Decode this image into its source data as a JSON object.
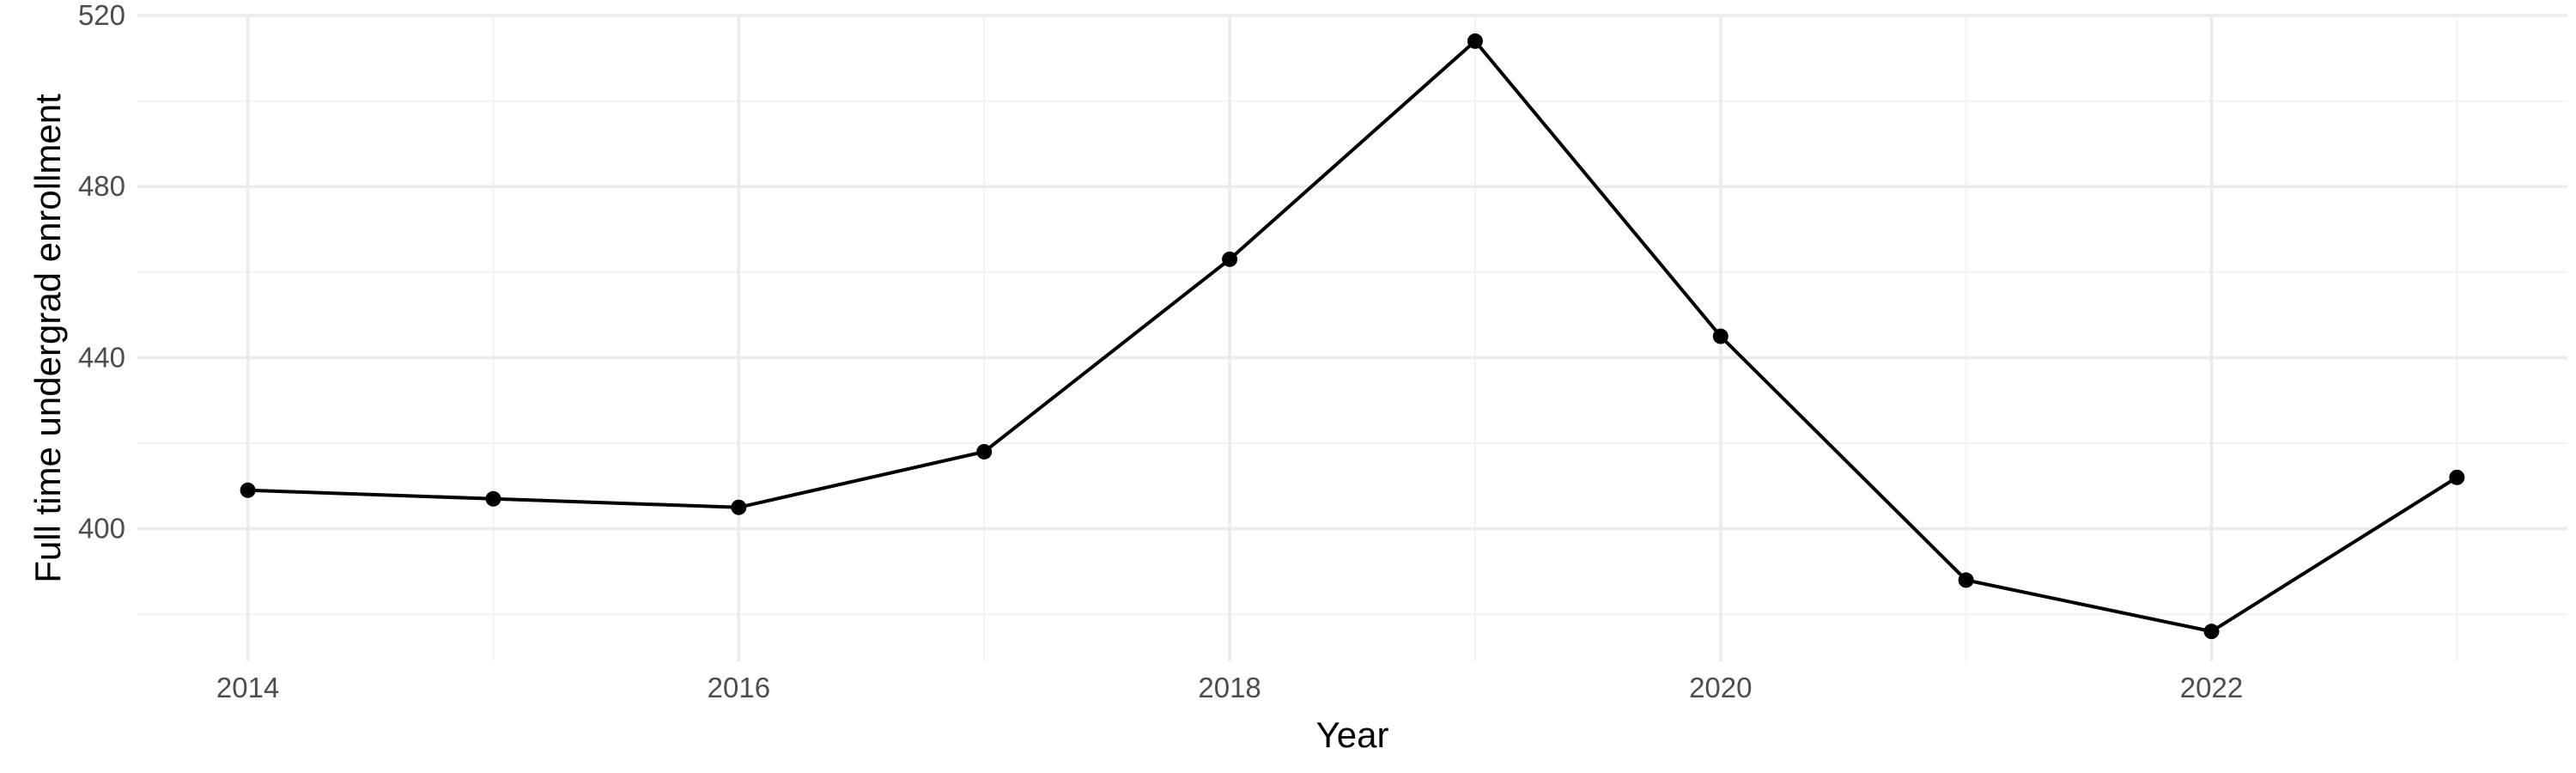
{
  "chart_data": {
    "type": "line",
    "title": "",
    "xlabel": "Year",
    "ylabel": "Full time undergrad enrollment",
    "x": [
      2014,
      2015,
      2016,
      2017,
      2018,
      2019,
      2020,
      2021,
      2022,
      2023
    ],
    "series": [
      {
        "values": [
          409,
          407,
          405,
          418,
          463,
          514,
          445,
          388,
          376,
          412
        ]
      }
    ],
    "xlim": [
      2013.55,
      2023.45
    ],
    "ylim": [
      369,
      520
    ],
    "x_ticks": [
      2014,
      2016,
      2018,
      2020,
      2022
    ],
    "x_tick_labels": [
      "2014",
      "2016",
      "2018",
      "2020",
      "2022"
    ],
    "y_ticks": [
      400,
      440,
      480,
      520
    ],
    "y_tick_labels": [
      "400",
      "440",
      "480",
      "520"
    ],
    "grid": true,
    "legend": "none",
    "colors": {
      "line": "#000000",
      "point": "#000000",
      "grid_major": "#ebebeb",
      "grid_minor": "#f2f2f2",
      "tick_text": "#4d4d4d"
    }
  }
}
